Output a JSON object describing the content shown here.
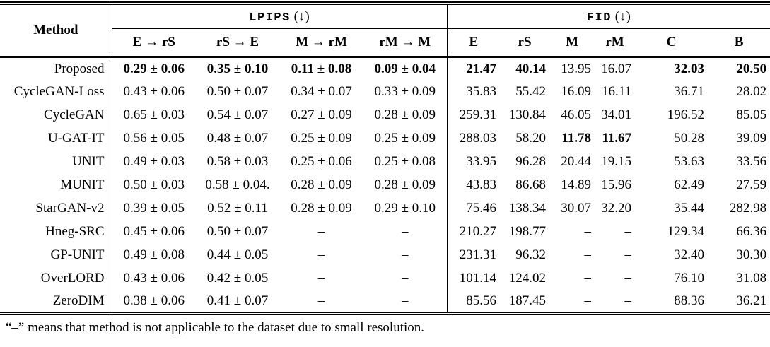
{
  "table": {
    "method_header": "Method",
    "groups": [
      {
        "name": "LPIPS",
        "suffix": "(↓)",
        "columns": [
          "E → rS",
          "rS → E",
          "M → rM",
          "rM → M"
        ]
      },
      {
        "name": "FID",
        "suffix": "(↓)",
        "columns": [
          "E",
          "rS",
          "M",
          "rM",
          "C",
          "B"
        ]
      }
    ],
    "rows": [
      {
        "method": "Proposed",
        "lpips": [
          {
            "text": "0.29 ± 0.06",
            "bold": true
          },
          {
            "text": "0.35 ± 0.10",
            "bold": true
          },
          {
            "text": "0.11 ± 0.08",
            "bold": true
          },
          {
            "text": "0.09 ± 0.04",
            "bold": true
          }
        ],
        "fid": [
          {
            "text": "21.47",
            "bold": true
          },
          {
            "text": "40.14",
            "bold": true
          },
          {
            "text": "13.95"
          },
          {
            "text": "16.07"
          },
          {
            "text": "32.03",
            "bold": true
          },
          {
            "text": "20.50",
            "bold": true
          }
        ]
      },
      {
        "method": "CycleGAN-Loss",
        "lpips": [
          {
            "text": "0.43 ± 0.06"
          },
          {
            "text": "0.50 ± 0.07"
          },
          {
            "text": "0.34 ± 0.07"
          },
          {
            "text": "0.33 ± 0.09"
          }
        ],
        "fid": [
          {
            "text": "35.83"
          },
          {
            "text": "55.42"
          },
          {
            "text": "16.09"
          },
          {
            "text": "16.11"
          },
          {
            "text": "36.71"
          },
          {
            "text": "28.02"
          }
        ]
      },
      {
        "method": "CycleGAN",
        "lpips": [
          {
            "text": "0.65 ± 0.03"
          },
          {
            "text": "0.54 ± 0.07"
          },
          {
            "text": "0.27 ± 0.09"
          },
          {
            "text": "0.28 ± 0.09"
          }
        ],
        "fid": [
          {
            "text": "259.31"
          },
          {
            "text": "130.84"
          },
          {
            "text": "46.05"
          },
          {
            "text": "34.01"
          },
          {
            "text": "196.52"
          },
          {
            "text": "85.05"
          }
        ]
      },
      {
        "method": "U-GAT-IT",
        "lpips": [
          {
            "text": "0.56 ± 0.05"
          },
          {
            "text": "0.48 ± 0.07"
          },
          {
            "text": "0.25 ± 0.09"
          },
          {
            "text": "0.25 ± 0.09"
          }
        ],
        "fid": [
          {
            "text": "288.03"
          },
          {
            "text": "58.20"
          },
          {
            "text": "11.78",
            "bold": true
          },
          {
            "text": "11.67",
            "bold": true
          },
          {
            "text": "50.28"
          },
          {
            "text": "39.09"
          }
        ]
      },
      {
        "method": "UNIT",
        "lpips": [
          {
            "text": "0.49 ± 0.03"
          },
          {
            "text": "0.58 ± 0.03"
          },
          {
            "text": "0.25 ± 0.06"
          },
          {
            "text": "0.25 ± 0.08"
          }
        ],
        "fid": [
          {
            "text": "33.95"
          },
          {
            "text": "96.28"
          },
          {
            "text": "20.44"
          },
          {
            "text": "19.15"
          },
          {
            "text": "53.63"
          },
          {
            "text": "33.56"
          }
        ]
      },
      {
        "method": "MUNIT",
        "lpips": [
          {
            "text": "0.50 ± 0.03"
          },
          {
            "text": "0.58 ± 0.04."
          },
          {
            "text": "0.28 ± 0.09"
          },
          {
            "text": "0.28 ± 0.09"
          }
        ],
        "fid": [
          {
            "text": "43.83"
          },
          {
            "text": "86.68"
          },
          {
            "text": "14.89"
          },
          {
            "text": "15.96"
          },
          {
            "text": "62.49"
          },
          {
            "text": "27.59"
          }
        ]
      },
      {
        "method": "StarGAN-v2",
        "lpips": [
          {
            "text": "0.39 ± 0.05"
          },
          {
            "text": "0.52 ± 0.11"
          },
          {
            "text": "0.28 ± 0.09"
          },
          {
            "text": "0.29 ± 0.10"
          }
        ],
        "fid": [
          {
            "text": "75.46"
          },
          {
            "text": "138.34"
          },
          {
            "text": "30.07"
          },
          {
            "text": "32.20"
          },
          {
            "text": "35.44"
          },
          {
            "text": "282.98"
          }
        ]
      },
      {
        "method": "Hneg-SRC",
        "lpips": [
          {
            "text": "0.45 ± 0.06"
          },
          {
            "text": "0.50 ± 0.07"
          },
          {
            "text": "–"
          },
          {
            "text": "–"
          }
        ],
        "fid": [
          {
            "text": "210.27"
          },
          {
            "text": "198.77"
          },
          {
            "text": "–"
          },
          {
            "text": "–"
          },
          {
            "text": "129.34"
          },
          {
            "text": "66.36"
          }
        ]
      },
      {
        "method": "GP-UNIT",
        "lpips": [
          {
            "text": "0.49 ± 0.08"
          },
          {
            "text": "0.44 ± 0.05"
          },
          {
            "text": "–"
          },
          {
            "text": "–"
          }
        ],
        "fid": [
          {
            "text": "231.31"
          },
          {
            "text": "96.32"
          },
          {
            "text": "–"
          },
          {
            "text": "–"
          },
          {
            "text": "32.40"
          },
          {
            "text": "30.30"
          }
        ]
      },
      {
        "method": "OverLORD",
        "lpips": [
          {
            "text": "0.43 ± 0.06"
          },
          {
            "text": "0.42 ± 0.05"
          },
          {
            "text": "–"
          },
          {
            "text": "–"
          }
        ],
        "fid": [
          {
            "text": "101.14"
          },
          {
            "text": "124.02"
          },
          {
            "text": "–"
          },
          {
            "text": "–"
          },
          {
            "text": "76.10"
          },
          {
            "text": "31.08"
          }
        ]
      },
      {
        "method": "ZeroDIM",
        "lpips": [
          {
            "text": "0.38 ± 0.06"
          },
          {
            "text": "0.41 ± 0.07"
          },
          {
            "text": "–"
          },
          {
            "text": "–"
          }
        ],
        "fid": [
          {
            "text": "85.56"
          },
          {
            "text": "187.45"
          },
          {
            "text": "–"
          },
          {
            "text": "–"
          },
          {
            "text": "88.36"
          },
          {
            "text": "36.21"
          }
        ]
      }
    ]
  },
  "footnote": "“–” means that method is not applicable to the dataset due to small resolution."
}
